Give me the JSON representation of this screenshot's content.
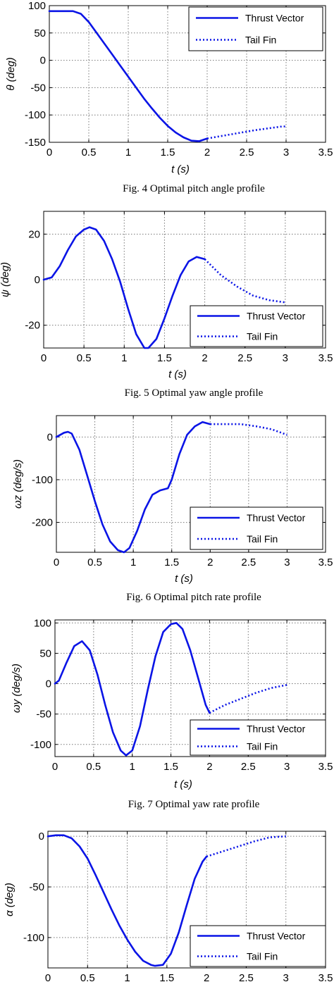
{
  "chart_data": [
    {
      "type": "line",
      "ylabel": "θ (deg)",
      "xlabel": "t (s)",
      "caption": "Fig. 4 Optimal pitch angle profile",
      "xlim": [
        0,
        3.5
      ],
      "ylim": [
        -150,
        100
      ],
      "xticks": [
        "0",
        "0.5",
        "1",
        "1.5",
        "2",
        "2.5",
        "3",
        "3.5"
      ],
      "yticks": [
        "100",
        "50",
        "0",
        "-50",
        "-100",
        "-150"
      ],
      "ytick_values": [
        100,
        50,
        0,
        -50,
        -100,
        -150
      ],
      "grid": true,
      "legend_position": "top-right",
      "series": [
        {
          "name": "Thrust Vector",
          "style": "solid",
          "color": "#0a14e6",
          "x": [
            0,
            0.15,
            0.3,
            0.4,
            0.5,
            0.6,
            0.7,
            0.8,
            0.9,
            1.0,
            1.1,
            1.2,
            1.3,
            1.4,
            1.5,
            1.6,
            1.7,
            1.8,
            1.9,
            2.0
          ],
          "y": [
            90,
            90,
            90,
            85,
            70,
            50,
            30,
            10,
            -10,
            -30,
            -50,
            -70,
            -88,
            -105,
            -120,
            -132,
            -141,
            -147,
            -148,
            -143
          ]
        },
        {
          "name": "Tail Fin",
          "style": "dotted",
          "color": "#0a14e6",
          "x": [
            2.0,
            2.2,
            2.4,
            2.6,
            2.8,
            2.95,
            3.0
          ],
          "y": [
            -143,
            -138,
            -133,
            -128,
            -124,
            -121,
            -121
          ]
        }
      ]
    },
    {
      "type": "line",
      "ylabel": "ψ (deg)",
      "xlabel": "t (s)",
      "caption": "Fig. 5 Optimal yaw angle profile",
      "xlim": [
        0,
        3.5
      ],
      "ylim": [
        -30,
        30
      ],
      "xticks": [
        "0",
        "0.5",
        "1",
        "1.5",
        "2",
        "2.5",
        "3",
        "3.5"
      ],
      "yticks": [
        "20",
        "0",
        "-20"
      ],
      "ytick_values": [
        20,
        0,
        -20
      ],
      "grid": true,
      "legend_position": "bottom-right",
      "series": [
        {
          "name": "Thrust Vector",
          "style": "solid",
          "color": "#0a14e6",
          "x": [
            0,
            0.1,
            0.2,
            0.3,
            0.4,
            0.5,
            0.57,
            0.65,
            0.75,
            0.85,
            0.95,
            1.05,
            1.15,
            1.25,
            1.3,
            1.4,
            1.5,
            1.6,
            1.7,
            1.8,
            1.9,
            2.0
          ],
          "y": [
            0,
            1,
            6,
            13,
            19,
            22,
            23,
            22,
            17,
            9,
            -1,
            -13,
            -24,
            -30,
            -30,
            -26,
            -17,
            -7,
            2,
            8,
            10,
            9
          ]
        },
        {
          "name": "Tail Fin",
          "style": "dotted",
          "color": "#0a14e6",
          "x": [
            2.0,
            2.2,
            2.4,
            2.6,
            2.8,
            3.0
          ],
          "y": [
            9,
            2,
            -3,
            -7,
            -9,
            -10
          ]
        }
      ]
    },
    {
      "type": "line",
      "ylabel": "ωz (deg/s)",
      "xlabel": "t (s)",
      "caption": "Fig. 6 Optimal pitch rate profile",
      "xlim": [
        0,
        3.5
      ],
      "ylim": [
        -270,
        50
      ],
      "xticks": [
        "0",
        "0.5",
        "1",
        "1.5",
        "2",
        "2.5",
        "3",
        "3.5"
      ],
      "yticks": [
        "0",
        "-100",
        "-200"
      ],
      "ytick_values": [
        0,
        -100,
        -200
      ],
      "grid": true,
      "legend_position": "bottom-right",
      "series": [
        {
          "name": "Thrust Vector",
          "style": "solid",
          "color": "#0a14e6",
          "x": [
            0,
            0.1,
            0.15,
            0.2,
            0.3,
            0.4,
            0.5,
            0.6,
            0.7,
            0.8,
            0.88,
            0.95,
            1.05,
            1.15,
            1.25,
            1.35,
            1.45,
            1.5,
            1.6,
            1.7,
            1.8,
            1.9,
            2.0
          ],
          "y": [
            0,
            10,
            12,
            8,
            -30,
            -90,
            -150,
            -205,
            -245,
            -265,
            -270,
            -260,
            -220,
            -170,
            -135,
            -125,
            -120,
            -100,
            -40,
            5,
            25,
            35,
            30
          ]
        },
        {
          "name": "Tail Fin",
          "style": "dotted",
          "color": "#0a14e6",
          "x": [
            2.0,
            2.2,
            2.4,
            2.6,
            2.8,
            3.0
          ],
          "y": [
            30,
            30,
            30,
            25,
            18,
            5
          ]
        }
      ]
    },
    {
      "type": "line",
      "ylabel": "ωy (deg/s)",
      "xlabel": "t (s)",
      "caption": "Fig. 7 Optimal yaw rate profile",
      "xlim": [
        0,
        3.5
      ],
      "ylim": [
        -120,
        105
      ],
      "xticks": [
        "0",
        "0.5",
        "1",
        "1.5",
        "2",
        "2.5",
        "3",
        "3.5"
      ],
      "yticks": [
        "100",
        "50",
        "0",
        "-50",
        "-100"
      ],
      "ytick_values": [
        100,
        50,
        0,
        -50,
        -100
      ],
      "grid": true,
      "legend_position": "bottom-right",
      "series": [
        {
          "name": "Thrust Vector",
          "style": "solid",
          "color": "#0a14e6",
          "x": [
            0,
            0.05,
            0.15,
            0.25,
            0.35,
            0.45,
            0.55,
            0.65,
            0.75,
            0.85,
            0.92,
            1.0,
            1.1,
            1.2,
            1.3,
            1.4,
            1.5,
            1.57,
            1.65,
            1.75,
            1.85,
            1.95,
            2.0
          ],
          "y": [
            0,
            5,
            35,
            62,
            70,
            55,
            15,
            -35,
            -80,
            -110,
            -118,
            -110,
            -70,
            -10,
            45,
            85,
            98,
            100,
            90,
            55,
            10,
            -35,
            -48
          ]
        },
        {
          "name": "Tail Fin",
          "style": "dotted",
          "color": "#0a14e6",
          "x": [
            2.0,
            2.2,
            2.4,
            2.6,
            2.8,
            3.0
          ],
          "y": [
            -48,
            -35,
            -25,
            -15,
            -7,
            -2
          ]
        }
      ]
    },
    {
      "type": "line",
      "ylabel": "α (deg)",
      "xlabel": "",
      "caption": "",
      "xlim": [
        0,
        3.5
      ],
      "ylim": [
        -130,
        5
      ],
      "xticks": [
        "0",
        "0.5",
        "1",
        "1.5",
        "2",
        "2.5",
        "3",
        "3.5"
      ],
      "yticks": [
        "0",
        "-50",
        "-100"
      ],
      "ytick_values": [
        0,
        -50,
        -100
      ],
      "grid": true,
      "legend_position": "bottom-right",
      "series": [
        {
          "name": "Thrust Vector",
          "style": "solid",
          "color": "#0a14e6",
          "x": [
            0,
            0.1,
            0.2,
            0.3,
            0.4,
            0.5,
            0.6,
            0.7,
            0.8,
            0.9,
            1.0,
            1.1,
            1.2,
            1.3,
            1.35,
            1.45,
            1.55,
            1.65,
            1.75,
            1.85,
            1.95,
            2.0
          ],
          "y": [
            0,
            1,
            1,
            -2,
            -10,
            -22,
            -38,
            -55,
            -72,
            -88,
            -102,
            -114,
            -123,
            -127,
            -128,
            -127,
            -116,
            -95,
            -68,
            -42,
            -25,
            -20
          ]
        },
        {
          "name": "Tail Fin",
          "style": "dotted",
          "color": "#0a14e6",
          "x": [
            2.0,
            2.2,
            2.4,
            2.6,
            2.8,
            3.0
          ],
          "y": [
            -20,
            -15,
            -10,
            -5,
            -1,
            0
          ]
        }
      ]
    }
  ]
}
